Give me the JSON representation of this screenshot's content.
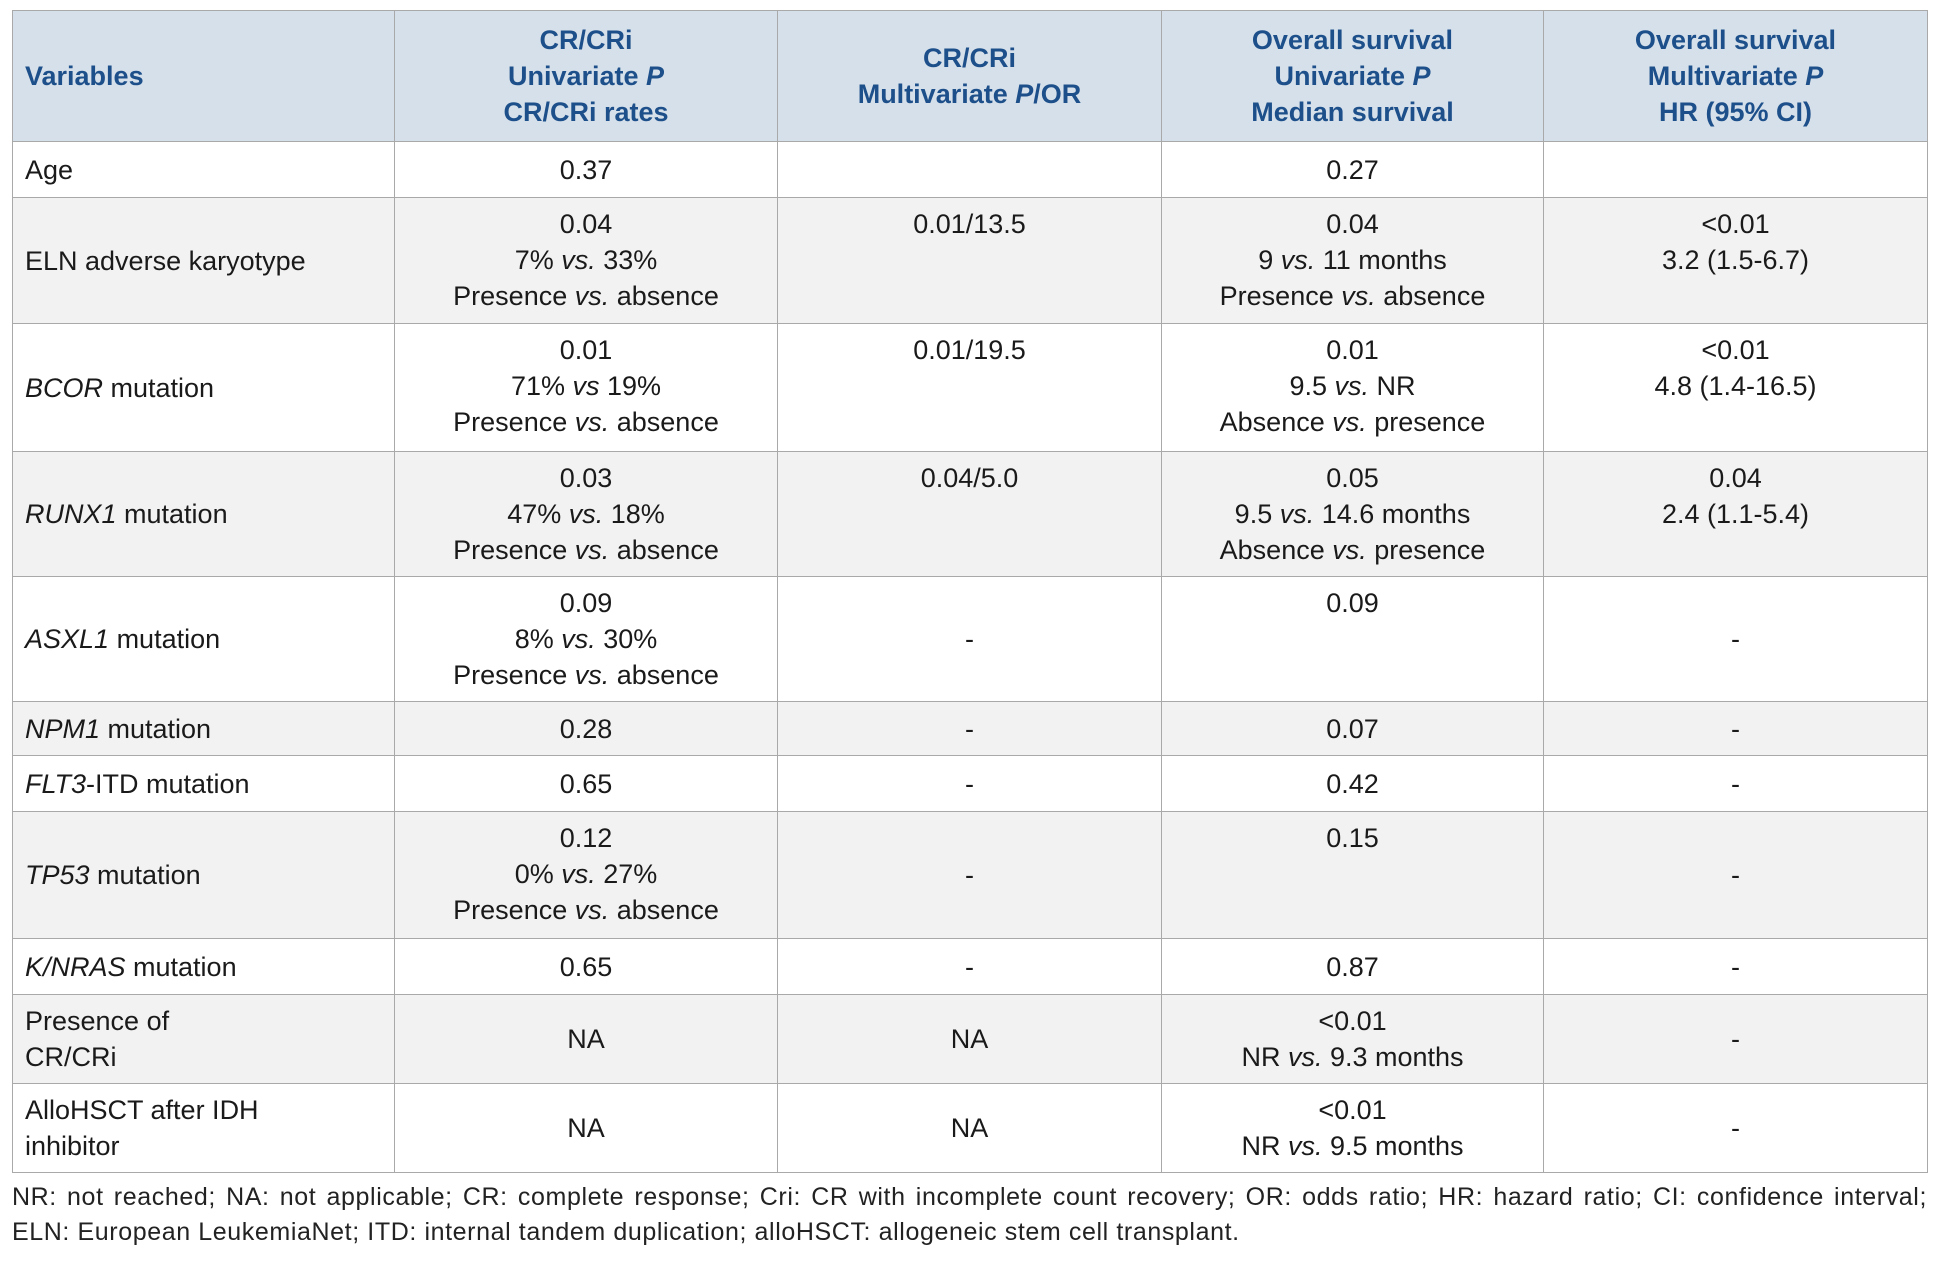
{
  "table": {
    "header": [
      [
        "Variables"
      ],
      [
        "CR/CRi",
        [
          "Univariate ",
          {
            "i": "P"
          }
        ],
        "CR/CRi rates"
      ],
      [
        "CR/CRi",
        [
          "Multivariate ",
          {
            "i": "P"
          },
          "/OR"
        ]
      ],
      [
        "Overall survival",
        [
          "Univariate ",
          {
            "i": "P"
          }
        ],
        "Median survival"
      ],
      [
        "Overall survival",
        [
          "Multivariate ",
          {
            "i": "P"
          }
        ],
        "HR (95% CI)"
      ]
    ],
    "rows": [
      [
        [
          "Age"
        ],
        [
          "0.37"
        ],
        [],
        [
          "0.27"
        ],
        []
      ],
      [
        [
          "ELN adverse karyotype"
        ],
        [
          "0.04",
          [
            "7% ",
            {
              "i": "vs."
            },
            " 33%"
          ],
          [
            "Presence ",
            {
              "i": "vs."
            },
            " absence"
          ]
        ],
        [
          "0.01/13.5"
        ],
        [
          "0.04",
          [
            "9 ",
            {
              "i": "vs."
            },
            " 11 months"
          ],
          [
            "Presence ",
            {
              "i": "vs."
            },
            " absence"
          ]
        ],
        [
          "<0.01",
          "3.2 (1.5-6.7)"
        ]
      ],
      [
        [
          [
            {
              "i": "BCOR"
            },
            " mutation"
          ]
        ],
        [
          "0.01",
          [
            "71% ",
            {
              "i": "vs"
            },
            " 19%"
          ],
          [
            "Presence ",
            {
              "i": "vs."
            },
            " absence"
          ]
        ],
        [
          "0.01/19.5"
        ],
        [
          "0.01",
          [
            "9.5 ",
            {
              "i": "vs."
            },
            " NR"
          ],
          [
            "Absence ",
            {
              "i": "vs."
            },
            " presence"
          ]
        ],
        [
          "<0.01",
          "4.8 (1.4-16.5)"
        ]
      ],
      [
        [
          [
            {
              "i": "RUNX1"
            },
            " mutation"
          ]
        ],
        [
          "0.03",
          [
            "47% ",
            {
              "i": "vs."
            },
            " 18%"
          ],
          [
            "Presence ",
            {
              "i": "vs."
            },
            " absence"
          ]
        ],
        [
          "0.04/5.0"
        ],
        [
          "0.05",
          [
            "9.5 ",
            {
              "i": "vs."
            },
            " 14.6 months"
          ],
          [
            "Absence ",
            {
              "i": "vs."
            },
            " presence"
          ]
        ],
        [
          "0.04",
          "2.4 (1.1-5.4)"
        ]
      ],
      [
        [
          [
            {
              "i": "ASXL1"
            },
            " mutation"
          ]
        ],
        [
          "0.09",
          [
            "8% ",
            {
              "i": "vs."
            },
            " 30%"
          ],
          [
            "Presence ",
            {
              "i": "vs."
            },
            " absence"
          ]
        ],
        [
          "-"
        ],
        [
          "0.09"
        ],
        [
          "-"
        ]
      ],
      [
        [
          [
            {
              "i": "NPM1"
            },
            " mutation"
          ]
        ],
        [
          "0.28"
        ],
        [
          "-"
        ],
        [
          "0.07"
        ],
        [
          "-"
        ]
      ],
      [
        [
          [
            {
              "i": "FLT3"
            },
            "-ITD mutation"
          ]
        ],
        [
          "0.65"
        ],
        [
          "-"
        ],
        [
          "0.42"
        ],
        [
          "-"
        ]
      ],
      [
        [
          [
            {
              "i": "TP53"
            },
            " mutation"
          ]
        ],
        [
          "0.12",
          [
            "0% ",
            {
              "i": "vs."
            },
            " 27%"
          ],
          [
            "Presence ",
            {
              "i": "vs."
            },
            " absence"
          ]
        ],
        [
          "-"
        ],
        [
          "0.15"
        ],
        [
          "-"
        ]
      ],
      [
        [
          [
            {
              "i": "K/NRAS"
            },
            " mutation"
          ]
        ],
        [
          "0.65"
        ],
        [
          "-"
        ],
        [
          "0.87"
        ],
        [
          "-"
        ]
      ],
      [
        [
          "Presence of",
          "CR/CRi"
        ],
        [
          "NA"
        ],
        [
          "NA"
        ],
        [
          "<0.01",
          [
            "NR ",
            {
              "i": "vs."
            },
            " 9.3 months"
          ]
        ],
        [
          "-"
        ]
      ],
      [
        [
          "AlloHSCT after IDH",
          "inhibitor"
        ],
        [
          "NA"
        ],
        [
          "NA"
        ],
        [
          "<0.01",
          [
            "NR ",
            {
              "i": "vs."
            },
            " 9.5 months"
          ]
        ],
        [
          "-"
        ]
      ]
    ]
  },
  "footnote": "NR: not reached; NA: not applicable; CR: complete response; Cri: CR with incomplete count recovery; OR: odds ratio; HR: hazard ratio; CI: confidence interval; ELN: European LeukemiaNet; ITD: internal tandem duplication; alloHSCT: allogeneic stem cell transplant."
}
